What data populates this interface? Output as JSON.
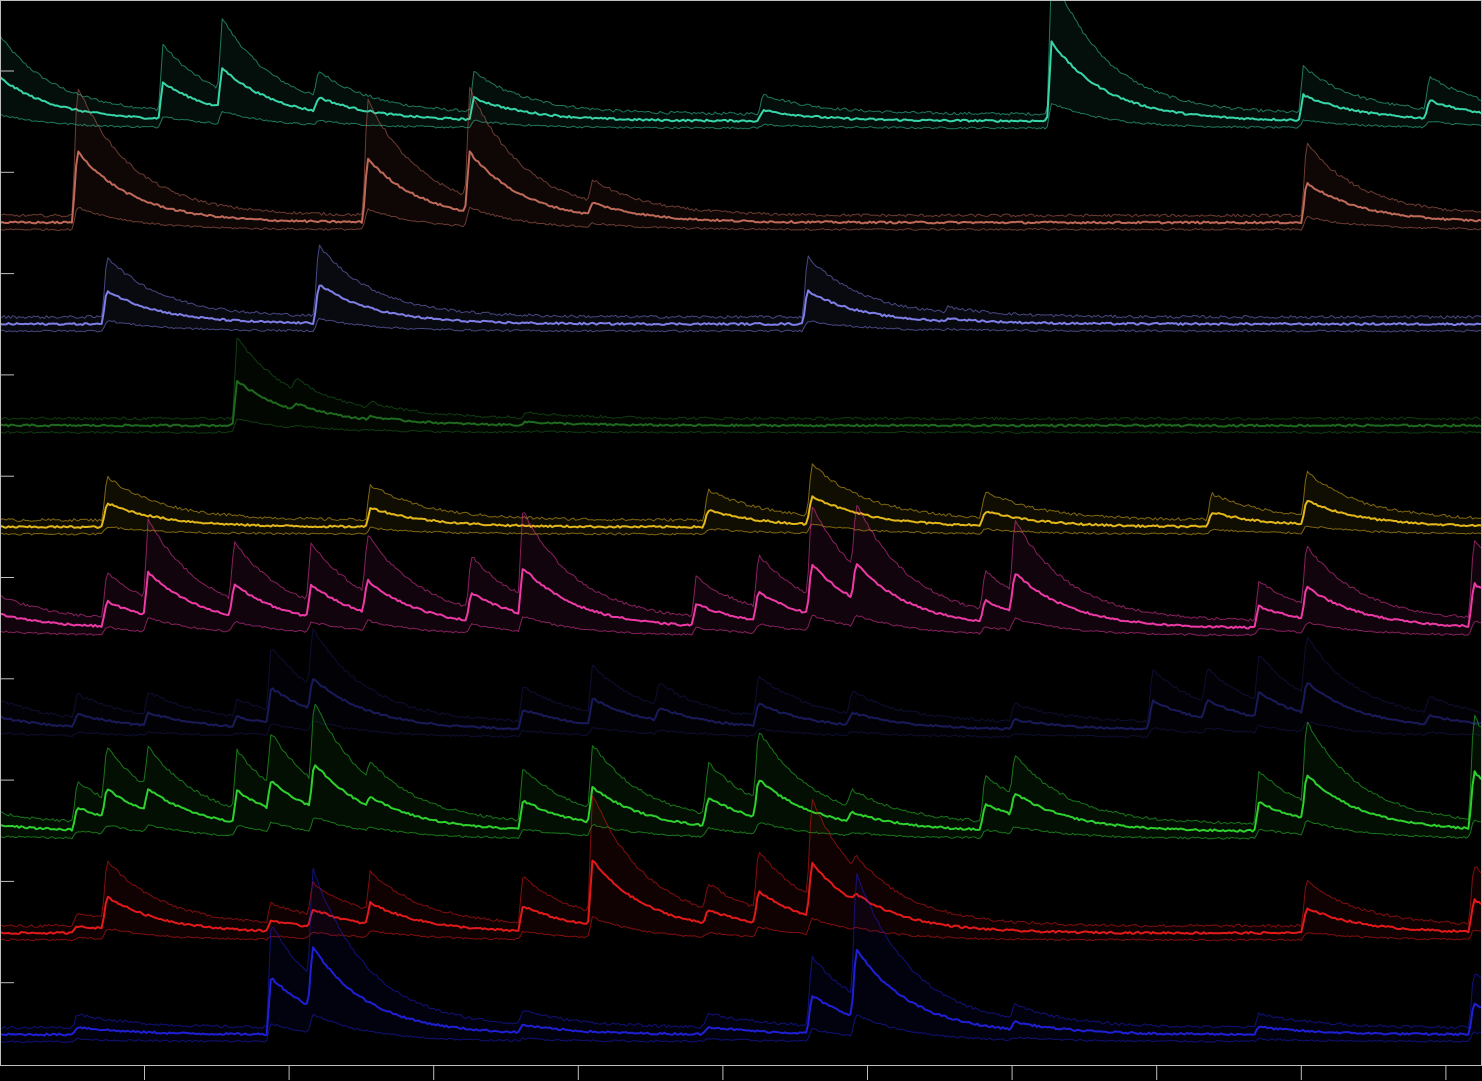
{
  "chart_data": {
    "type": "line",
    "title": "",
    "xlabel": "",
    "ylabel": "",
    "xlim": [
      0,
      1000
    ],
    "grid": false,
    "background": "#000000",
    "x_ticks": [
      100,
      200,
      300,
      400,
      500,
      600,
      700,
      800,
      900,
      1000
    ],
    "y_ticks": [
      0,
      1,
      2,
      3,
      4,
      5,
      6,
      7,
      8,
      9
    ],
    "series": [
      {
        "color": "#38d6a8",
        "baseline": 0,
        "amplitude": 0.9,
        "events": [
          [
            0,
            0.6
          ],
          [
            110,
            0.5
          ],
          [
            150,
            0.55
          ],
          [
            215,
            0.2
          ],
          [
            320,
            0.3
          ],
          [
            515,
            0.15
          ],
          [
            710,
            1.1
          ],
          [
            880,
            0.35
          ],
          [
            965,
            0.25
          ]
        ]
      },
      {
        "color": "#c06a5a",
        "baseline": 1,
        "amplitude": 1.0,
        "events": [
          [
            52,
            0.9
          ],
          [
            248,
            0.8
          ],
          [
            317,
            0.75
          ],
          [
            400,
            0.15
          ],
          [
            882,
            0.5
          ]
        ]
      },
      {
        "color": "#7f7fe8",
        "baseline": 2,
        "amplitude": 0.7,
        "events": [
          [
            72,
            0.6
          ],
          [
            215,
            0.7
          ],
          [
            545,
            0.6
          ],
          [
            640,
            0.05
          ]
        ]
      },
      {
        "color": "#1f6a1f",
        "baseline": 3,
        "amplitude": 0.8,
        "events": [
          [
            160,
            0.7
          ],
          [
            200,
            0.1
          ],
          [
            250,
            0.05
          ],
          [
            355,
            0.05
          ]
        ]
      },
      {
        "color": "#e3b81c",
        "baseline": 4,
        "amplitude": 0.6,
        "events": [
          [
            72,
            0.5
          ],
          [
            250,
            0.4
          ],
          [
            478,
            0.35
          ],
          [
            548,
            0.6
          ],
          [
            665,
            0.3
          ],
          [
            818,
            0.3
          ],
          [
            882,
            0.5
          ]
        ]
      },
      {
        "color": "#ee3aa6",
        "baseline": 5,
        "amplitude": 0.9,
        "events": [
          [
            0,
            0.2
          ],
          [
            72,
            0.35
          ],
          [
            100,
            0.6
          ],
          [
            158,
            0.45
          ],
          [
            210,
            0.45
          ],
          [
            248,
            0.45
          ],
          [
            318,
            0.4
          ],
          [
            353,
            0.65
          ],
          [
            470,
            0.3
          ],
          [
            512,
            0.4
          ],
          [
            548,
            0.7
          ],
          [
            578,
            0.5
          ],
          [
            665,
            0.3
          ],
          [
            685,
            0.55
          ],
          [
            850,
            0.3
          ],
          [
            882,
            0.45
          ],
          [
            995,
            0.6
          ]
        ]
      },
      {
        "color": "#1a1a5a",
        "baseline": 6,
        "amplitude": 0.8,
        "events": [
          [
            0,
            0.2
          ],
          [
            52,
            0.2
          ],
          [
            100,
            0.2
          ],
          [
            160,
            0.15
          ],
          [
            183,
            0.55
          ],
          [
            211,
            0.5
          ],
          [
            353,
            0.3
          ],
          [
            400,
            0.4
          ],
          [
            445,
            0.2
          ],
          [
            512,
            0.35
          ],
          [
            575,
            0.2
          ],
          [
            685,
            0.15
          ],
          [
            778,
            0.45
          ],
          [
            815,
            0.3
          ],
          [
            850,
            0.4
          ],
          [
            882,
            0.5
          ],
          [
            965,
            0.15
          ]
        ]
      },
      {
        "color": "#2ed12e",
        "baseline": 7,
        "amplitude": 0.8,
        "events": [
          [
            0,
            0.1
          ],
          [
            52,
            0.35
          ],
          [
            72,
            0.45
          ],
          [
            100,
            0.35
          ],
          [
            160,
            0.5
          ],
          [
            183,
            0.45
          ],
          [
            212,
            0.7
          ],
          [
            250,
            0.15
          ],
          [
            353,
            0.45
          ],
          [
            400,
            0.55
          ],
          [
            478,
            0.45
          ],
          [
            512,
            0.6
          ],
          [
            575,
            0.15
          ],
          [
            665,
            0.4
          ],
          [
            685,
            0.35
          ],
          [
            850,
            0.45
          ],
          [
            882,
            0.7
          ],
          [
            995,
            0.9
          ]
        ]
      },
      {
        "color": "#e31a1a",
        "baseline": 8,
        "amplitude": 0.9,
        "events": [
          [
            52,
            0.1
          ],
          [
            72,
            0.45
          ],
          [
            183,
            0.15
          ],
          [
            211,
            0.25
          ],
          [
            250,
            0.3
          ],
          [
            353,
            0.35
          ],
          [
            400,
            0.9
          ],
          [
            478,
            0.2
          ],
          [
            512,
            0.45
          ],
          [
            548,
            0.75
          ],
          [
            578,
            0.1
          ],
          [
            882,
            0.35
          ],
          [
            995,
            0.45
          ]
        ]
      },
      {
        "color": "#1f1fd6",
        "baseline": 9,
        "amplitude": 0.95,
        "events": [
          [
            52,
            0.1
          ],
          [
            183,
            0.75
          ],
          [
            211,
            0.8
          ],
          [
            353,
            0.1
          ],
          [
            478,
            0.1
          ],
          [
            548,
            0.5
          ],
          [
            578,
            0.9
          ],
          [
            685,
            0.1
          ],
          [
            850,
            0.1
          ],
          [
            995,
            0.4
          ]
        ]
      }
    ]
  }
}
